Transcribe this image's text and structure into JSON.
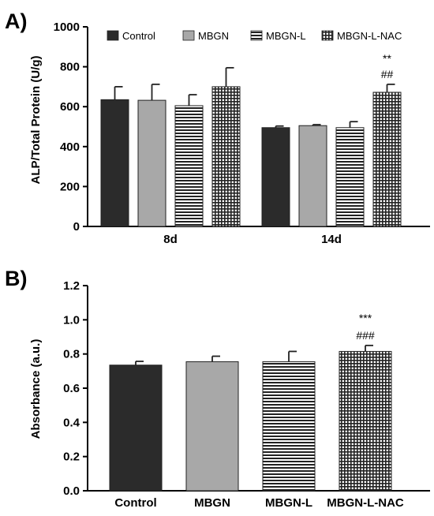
{
  "chart_data": [
    {
      "panel": "A)",
      "type": "bar",
      "ylabel": "ALP/Total Protein (U/g)",
      "ylim": [
        0,
        1000
      ],
      "yticks": [
        "0",
        "200",
        "400",
        "600",
        "800",
        "1000"
      ],
      "categories": [
        "8d",
        "14d"
      ],
      "legend_position": "top",
      "series": [
        {
          "name": "Control",
          "values": [
            635,
            495
          ],
          "errors": [
            65,
            8
          ],
          "fill": "solid-dark"
        },
        {
          "name": "MBGN",
          "values": [
            632,
            505
          ],
          "errors": [
            80,
            5
          ],
          "fill": "solid-gray"
        },
        {
          "name": "MBGN-L",
          "values": [
            605,
            495
          ],
          "errors": [
            55,
            30
          ],
          "fill": "horizontal-lines"
        },
        {
          "name": "MBGN-L-NAC",
          "values": [
            700,
            672
          ],
          "errors": [
            95,
            40
          ],
          "fill": "grid"
        }
      ],
      "annotations": [
        {
          "series": "MBGN-L-NAC",
          "category": "14d",
          "lines": [
            "**",
            "##"
          ]
        }
      ]
    },
    {
      "panel": "B)",
      "type": "bar",
      "ylabel": "Absorbance (a.u.)",
      "ylim": [
        0,
        1.2
      ],
      "yticks": [
        "0.0",
        "0.2",
        "0.4",
        "0.6",
        "0.8",
        "1.0",
        "1.2"
      ],
      "categories": [
        "Control",
        "MBGN",
        "MBGN-L",
        "MBGN-L-NAC"
      ],
      "values": [
        0.735,
        0.755,
        0.755,
        0.815
      ],
      "errors": [
        0.022,
        0.032,
        0.06,
        0.035
      ],
      "fills": [
        "solid-dark",
        "solid-gray",
        "horizontal-lines",
        "grid"
      ],
      "annotations": [
        {
          "category": "MBGN-L-NAC",
          "lines": [
            "***",
            "###"
          ]
        }
      ]
    }
  ],
  "colors": {
    "dark": "#2b2b2b",
    "gray": "#a8a8a8",
    "axis": "#000000"
  }
}
